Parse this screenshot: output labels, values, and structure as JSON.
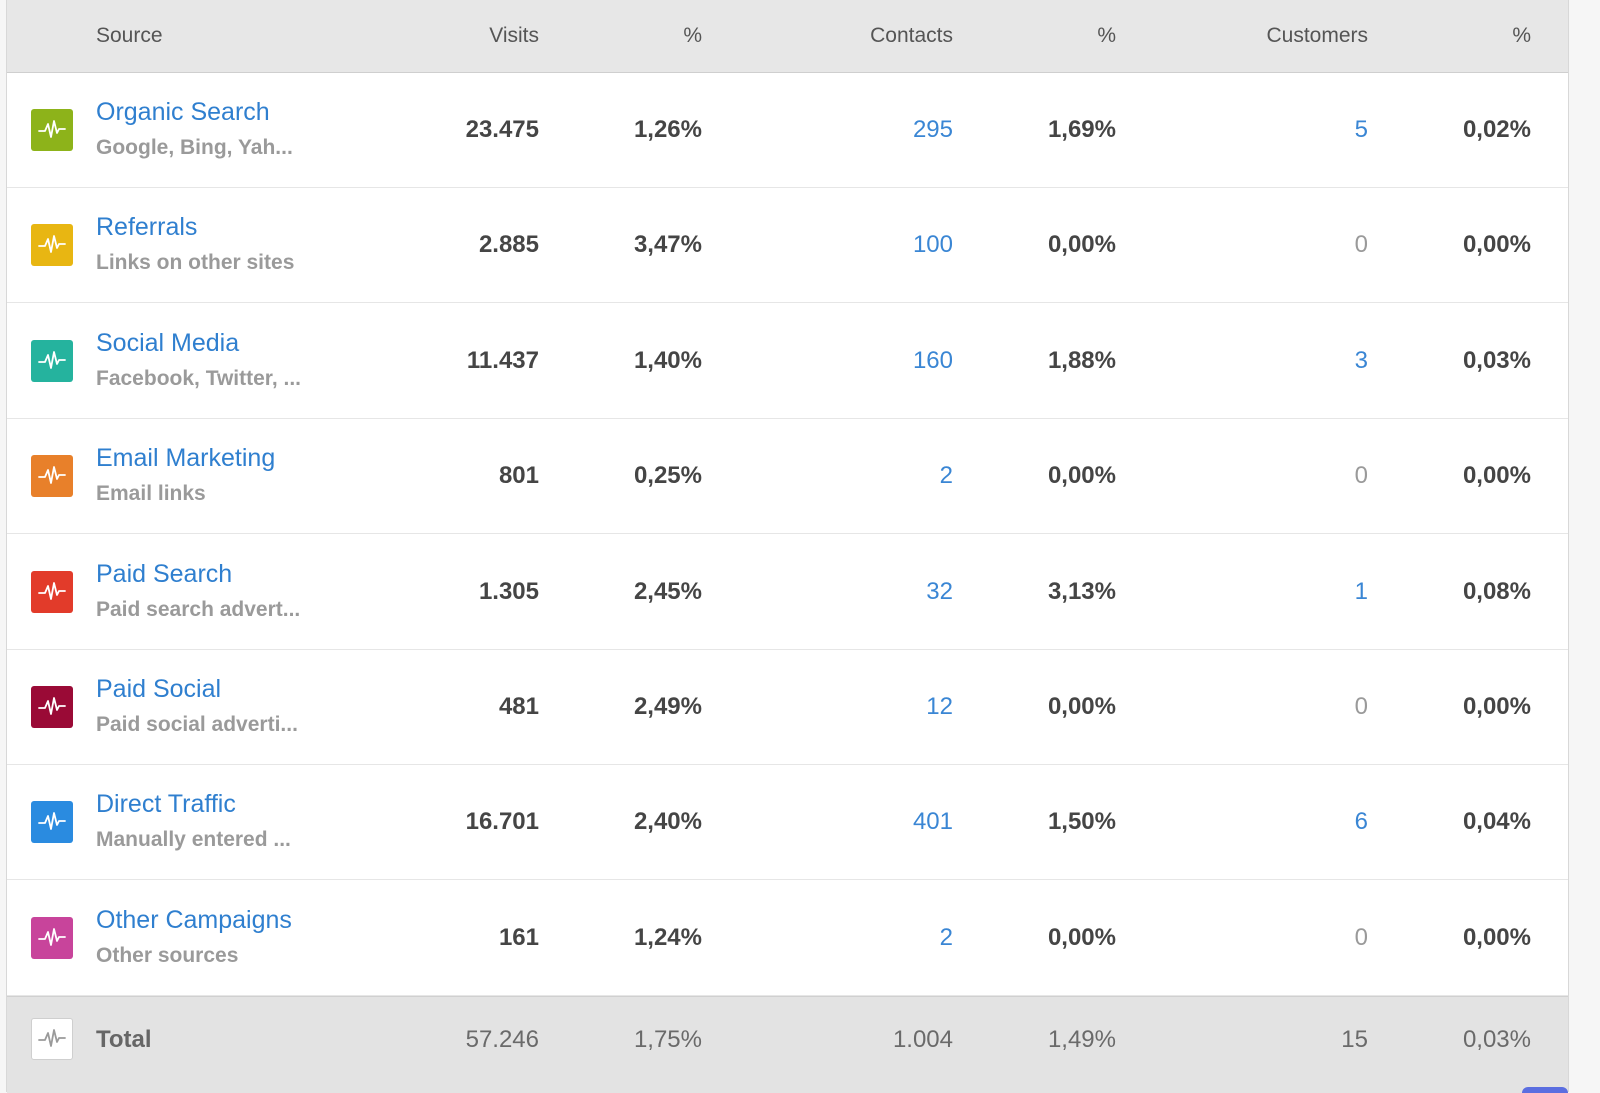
{
  "columns": {
    "source": "Source",
    "visits": "Visits",
    "visits_pct": "%",
    "contacts": "Contacts",
    "contacts_pct": "%",
    "customers": "Customers",
    "customers_pct": "%"
  },
  "rows": [
    {
      "name": "Organic Search",
      "desc": "Google, Bing, Yah...",
      "visits": "23.475",
      "visits_pct": "1,26%",
      "contacts": "295",
      "contacts_pct": "1,69%",
      "customers": "5",
      "customers_pct": "0,02%",
      "color": "#8db31a",
      "icon": "pulse-icon"
    },
    {
      "name": "Referrals",
      "desc": "Links on other sites",
      "visits": "2.885",
      "visits_pct": "3,47%",
      "contacts": "100",
      "contacts_pct": "0,00%",
      "customers": "0",
      "customers_pct": "0,00%",
      "color": "#e8b612",
      "icon": "pulse-icon"
    },
    {
      "name": "Social Media",
      "desc": "Facebook, Twitter, ...",
      "visits": "11.437",
      "visits_pct": "1,40%",
      "contacts": "160",
      "contacts_pct": "1,88%",
      "customers": "3",
      "customers_pct": "0,03%",
      "color": "#25b39e",
      "icon": "pulse-icon"
    },
    {
      "name": "Email Marketing",
      "desc": "Email links",
      "visits": "801",
      "visits_pct": "0,25%",
      "contacts": "2",
      "contacts_pct": "0,00%",
      "customers": "0",
      "customers_pct": "0,00%",
      "color": "#e8802a",
      "icon": "pulse-icon"
    },
    {
      "name": "Paid Search",
      "desc": "Paid search advert...",
      "visits": "1.305",
      "visits_pct": "2,45%",
      "contacts": "32",
      "contacts_pct": "3,13%",
      "customers": "1",
      "customers_pct": "0,08%",
      "color": "#e23b2a",
      "icon": "pulse-icon"
    },
    {
      "name": "Paid Social",
      "desc": "Paid social adverti...",
      "visits": "481",
      "visits_pct": "2,49%",
      "contacts": "12",
      "contacts_pct": "0,00%",
      "customers": "0",
      "customers_pct": "0,00%",
      "color": "#9a0a36",
      "icon": "pulse-icon"
    },
    {
      "name": "Direct Traffic",
      "desc": "Manually entered ...",
      "visits": "16.701",
      "visits_pct": "2,40%",
      "contacts": "401",
      "contacts_pct": "1,50%",
      "customers": "6",
      "customers_pct": "0,04%",
      "color": "#2a8be0",
      "icon": "pulse-icon"
    },
    {
      "name": "Other Campaigns",
      "desc": "Other sources",
      "visits": "161",
      "visits_pct": "1,24%",
      "contacts": "2",
      "contacts_pct": "0,00%",
      "customers": "0",
      "customers_pct": "0,00%",
      "color": "#c8449b",
      "icon": "pulse-icon"
    }
  ],
  "total": {
    "label": "Total",
    "visits": "57.246",
    "visits_pct": "1,75%",
    "contacts": "1.004",
    "contacts_pct": "1,49%",
    "customers": "15",
    "customers_pct": "0,03%",
    "icon": "pulse-icon"
  }
}
